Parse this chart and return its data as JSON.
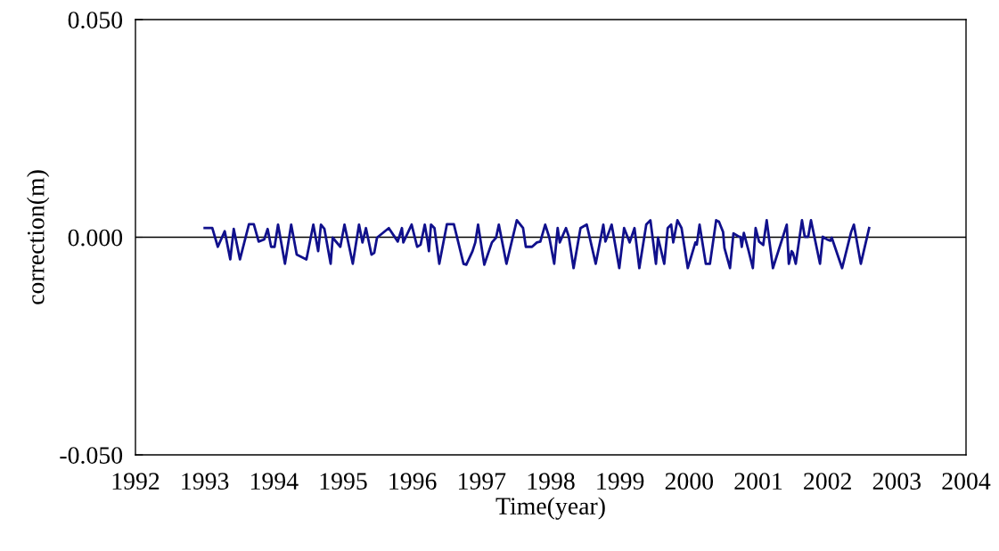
{
  "chart_data": {
    "type": "line",
    "xlabel": "Time(year)",
    "ylabel": "correction(m)",
    "xlim": [
      1992,
      2004
    ],
    "xticks": [
      1992,
      1993,
      1994,
      1995,
      1996,
      1997,
      1998,
      1999,
      2000,
      2001,
      2002,
      2003,
      2004
    ],
    "ylim": [
      -0.05,
      0.05
    ],
    "yticks": [
      {
        "value": -0.05,
        "label": "-0.050"
      },
      {
        "value": 0,
        "label": "0.000"
      },
      {
        "value": 0.05,
        "label": "0.050"
      }
    ],
    "grid": false,
    "legend": false,
    "marker": "none",
    "line_style": "solid",
    "ref_lines": [
      {
        "axis": "y",
        "value": 0,
        "label": null,
        "color": "#000000"
      }
    ],
    "series": [
      {
        "color": "#10108c",
        "x": [
          1993.0,
          1993.11,
          1993.19,
          1993.29,
          1993.37,
          1993.42,
          1993.51,
          1993.64,
          1993.71,
          1993.78,
          1993.86,
          1993.91,
          1993.96,
          1994.01,
          1994.06,
          1994.16,
          1994.25,
          1994.33,
          1994.47,
          1994.57,
          1994.64,
          1994.68,
          1994.73,
          1994.82,
          1994.85,
          1994.96,
          1995.02,
          1995.14,
          1995.23,
          1995.28,
          1995.33,
          1995.41,
          1995.45,
          1995.49,
          1995.66,
          1995.79,
          1995.85,
          1995.87,
          1995.99,
          1996.07,
          1996.12,
          1996.18,
          1996.22,
          1996.24,
          1996.27,
          1996.32,
          1996.39,
          1996.5,
          1996.6,
          1996.74,
          1996.78,
          1996.87,
          1996.91,
          1996.95,
          1997.04,
          1997.15,
          1997.21,
          1997.25,
          1997.36,
          1997.51,
          1997.6,
          1997.64,
          1997.73,
          1997.8,
          1997.85,
          1997.92,
          1997.98,
          1998.05,
          1998.1,
          1998.13,
          1998.22,
          1998.26,
          1998.33,
          1998.43,
          1998.52,
          1998.65,
          1998.76,
          1998.79,
          1998.88,
          1998.99,
          1999.06,
          1999.14,
          1999.21,
          1999.28,
          1999.38,
          1999.44,
          1999.52,
          1999.55,
          1999.64,
          1999.69,
          1999.74,
          1999.77,
          1999.83,
          1999.89,
          1999.98,
          2000.09,
          2000.11,
          2000.15,
          2000.24,
          2000.3,
          2000.39,
          2000.43,
          2000.49,
          2000.51,
          2000.59,
          2000.64,
          2000.71,
          2000.74,
          2000.76,
          2000.79,
          2000.86,
          2000.92,
          2000.96,
          2001.01,
          2001.07,
          2001.12,
          2001.21,
          2001.41,
          2001.44,
          2001.48,
          2001.5,
          2001.54,
          2001.63,
          2001.67,
          2001.72,
          2001.76,
          2001.89,
          2001.93,
          2001.99,
          2002.04,
          2002.06,
          2002.21,
          2002.34,
          2002.38,
          2002.48,
          2002.6
        ],
        "values": [
          0.0021,
          0.0021,
          -0.0022,
          0.0014,
          -0.0051,
          0.0019,
          -0.0051,
          0.003,
          0.003,
          -0.001,
          -0.0005,
          0.0019,
          -0.0022,
          -0.0022,
          0.0029,
          -0.0061,
          0.0029,
          -0.004,
          -0.0051,
          0.0029,
          -0.0032,
          0.0029,
          0.0019,
          -0.0061,
          -0.0001,
          -0.0022,
          0.0029,
          -0.0061,
          0.0029,
          -0.0012,
          0.0021,
          -0.004,
          -0.0036,
          -0.0001,
          0.0021,
          -0.001,
          0.0021,
          -0.0012,
          0.0029,
          -0.0022,
          -0.0017,
          0.0029,
          -0.0008,
          -0.0032,
          0.0029,
          0.0021,
          -0.0061,
          0.003,
          0.003,
          -0.0061,
          -0.0063,
          -0.0032,
          -0.0012,
          0.0029,
          -0.0063,
          -0.0012,
          -0.0001,
          0.0029,
          -0.0061,
          0.0039,
          0.0021,
          -0.0022,
          -0.0022,
          -0.0012,
          -0.001,
          0.0029,
          -0.0001,
          -0.0061,
          0.0021,
          -0.0012,
          0.0021,
          0.0002,
          -0.0071,
          0.0021,
          0.0029,
          -0.0061,
          0.0029,
          -0.001,
          0.0029,
          -0.0071,
          0.0021,
          -0.0012,
          0.0021,
          -0.0071,
          0.0029,
          0.0039,
          -0.0061,
          -0.0001,
          -0.0061,
          0.0021,
          0.0029,
          -0.0012,
          0.0039,
          0.0021,
          -0.0071,
          -0.0012,
          -0.0017,
          0.0029,
          -0.0061,
          -0.0061,
          0.0039,
          0.0036,
          0.0012,
          -0.0025,
          -0.0071,
          0.0009,
          0.0002,
          0.0001,
          -0.0022,
          0.001,
          -0.0032,
          -0.0071,
          0.0021,
          -0.001,
          -0.0018,
          0.0039,
          -0.0071,
          0.0029,
          -0.0061,
          -0.0032,
          -0.0036,
          -0.0061,
          0.0039,
          0.0001,
          0.0001,
          0.0039,
          -0.0061,
          0.0001,
          -0.0005,
          -0.0008,
          -0.0001,
          -0.0071,
          0.0012,
          0.0029,
          -0.0061,
          0.0021
        ]
      }
    ]
  }
}
